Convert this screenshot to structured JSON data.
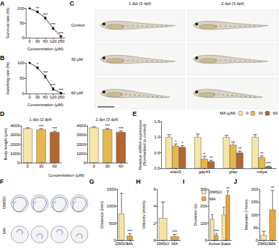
{
  "chart_data": [
    {
      "title": "A",
      "type": "line",
      "categories": [
        "0",
        "30",
        "60",
        "120",
        "250"
      ],
      "values": [
        100,
        88,
        67,
        32,
        5
      ],
      "errors": [
        0,
        3,
        4,
        4,
        2
      ],
      "annotations": [
        null,
        "**",
        "***",
        "***",
        "***"
      ],
      "color": "#000000",
      "marker": "circle",
      "x_label": "Concentration (μM)",
      "y_label": "Survival rate (%)",
      "ylim": [
        0,
        100
      ],
      "yticks": [
        0,
        50,
        100
      ],
      "grid": false
    },
    {
      "title": "B",
      "type": "line",
      "categories": [
        "0",
        "30",
        "60",
        "120",
        "250"
      ],
      "values": [
        100,
        84,
        55,
        15,
        2
      ],
      "errors": [
        0,
        3,
        5,
        4,
        1
      ],
      "annotations": [
        null,
        "*",
        "***",
        "***",
        "***"
      ],
      "color": "#000000",
      "marker": "circle",
      "x_label": "Concentration (μM)",
      "y_label": "Hatching rate (%)",
      "ylim": [
        0,
        100
      ],
      "yticks": [
        0,
        50,
        100
      ],
      "grid": false
    },
    {
      "title": "D",
      "type": "bar",
      "categories": [
        "0",
        "30",
        "60"
      ],
      "colors": [
        "#f5e6a8",
        "#e6b84c",
        "#b5652f"
      ],
      "x_label": "Concentration (μM)",
      "y_label": "Body length (μm)",
      "ylim": [
        0,
        4000
      ],
      "yticks": [
        0,
        1000,
        2000,
        3000,
        4000
      ],
      "grid": false,
      "panels": [
        {
          "subtitle": "1 dpt (2 dpf)",
          "values": [
            3700,
            3580,
            3300
          ],
          "errors": [
            80,
            90,
            100
          ],
          "annotations": [
            null,
            "***",
            "***"
          ]
        },
        {
          "subtitle": "2 dpt (3 dpf)",
          "values": [
            3800,
            3620,
            3310
          ],
          "errors": [
            70,
            80,
            120
          ],
          "annotations": [
            null,
            "***",
            "***"
          ]
        }
      ]
    },
    {
      "title": "E",
      "type": "bar",
      "categories": [
        "elavl3",
        "gap43",
        "gfap",
        "mbpa"
      ],
      "legend_title": "MA (μM)",
      "legend": "upper right",
      "y_label": "Relative mRNA expression\n(Normalized to control)",
      "ylim": [
        0,
        1.5
      ],
      "yticks": [
        {
          "value": 0,
          "label": "0.0"
        },
        0.5,
        {
          "value": 1,
          "label": "1.0"
        },
        1.5
      ],
      "grid": false,
      "series": [
        {
          "name": "0",
          "color": "#f5e6a8",
          "values": [
            1,
            1,
            1,
            1
          ],
          "errors": [
            0.08,
            0.1,
            0.06,
            0.08
          ],
          "annotations": [
            null,
            null,
            null,
            null
          ]
        },
        {
          "name": "30",
          "color": "#e6b84c",
          "values": [
            0.72,
            0.3,
            0.75,
            0.35
          ],
          "errors": [
            0.06,
            0.08,
            0.1,
            0.05
          ],
          "annotations": [
            "*",
            "*",
            null,
            "**"
          ]
        },
        {
          "name": "60",
          "color": "#b5652f",
          "values": [
            0.68,
            0.22,
            0.5,
            0.05
          ],
          "errors": [
            0.05,
            0.04,
            0.05,
            0.02
          ],
          "annotations": [
            "*",
            "**",
            "**",
            "***"
          ]
        }
      ]
    },
    {
      "title": "G",
      "type": "bar",
      "categories": [
        "DMSO",
        "MA"
      ],
      "colors": [
        "#f7e3a1",
        "#e8a33d"
      ],
      "values": [
        780,
        130
      ],
      "errors": [
        600,
        60
      ],
      "annotations": [
        null,
        "***"
      ],
      "y_label": "Distance (mm)",
      "ylim": [
        0,
        1500
      ],
      "yticks": [
        0,
        500,
        1000,
        1500
      ],
      "grid": false
    },
    {
      "title": "H",
      "type": "bar",
      "categories": [
        "DMSO",
        "MA"
      ],
      "colors": [
        "#f7e3a1",
        "#e8a33d"
      ],
      "values": [
        2.6,
        0.45
      ],
      "errors": [
        1.9,
        0.25
      ],
      "annotations": [
        null,
        "***"
      ],
      "y_label": "Velocity (mm/s)",
      "ylim": [
        0,
        6
      ],
      "yticks": [
        0,
        2,
        4,
        6
      ],
      "grid": false
    },
    {
      "title": "I",
      "type": "bar",
      "categories": [
        "Active",
        "Static"
      ],
      "legend": "upper left",
      "y_label": "Duration (s)",
      "ylim": [
        0,
        300
      ],
      "yticks": [
        0,
        100,
        200,
        300
      ],
      "grid": false,
      "series": [
        {
          "name": "DMSO",
          "color": "#f7e3a1",
          "values": [
            125,
            150
          ],
          "errors": [
            25,
            45
          ],
          "annotations": [
            null,
            null
          ]
        },
        {
          "name": "MA",
          "color": "#e8a33d",
          "values": [
            30,
            265
          ],
          "errors": [
            10,
            25
          ],
          "annotations": [
            "***",
            "**"
          ]
        }
      ]
    },
    {
      "title": "J",
      "type": "bar",
      "categories": [
        "DMSO",
        "MA"
      ],
      "colors": [
        "#f7e3a1",
        "#e8a33d"
      ],
      "values": [
        20,
        120
      ],
      "errors": [
        15,
        75
      ],
      "annotations": [
        null,
        "**"
      ],
      "y_label": "Meander (°/mm)",
      "ylim": [
        0,
        200
      ],
      "yticks": [
        0,
        50,
        100,
        150,
        200
      ],
      "grid": false
    }
  ],
  "photo_panels": [
    {
      "title": "C",
      "columns": [
        "1 dpt (2 dpf)",
        "2 dpt (3 dpf)"
      ],
      "rows": [
        "Control",
        "30 μM",
        "60 μM"
      ]
    },
    {
      "title": "F",
      "rows": [
        "DMSO",
        "MA"
      ]
    }
  ]
}
